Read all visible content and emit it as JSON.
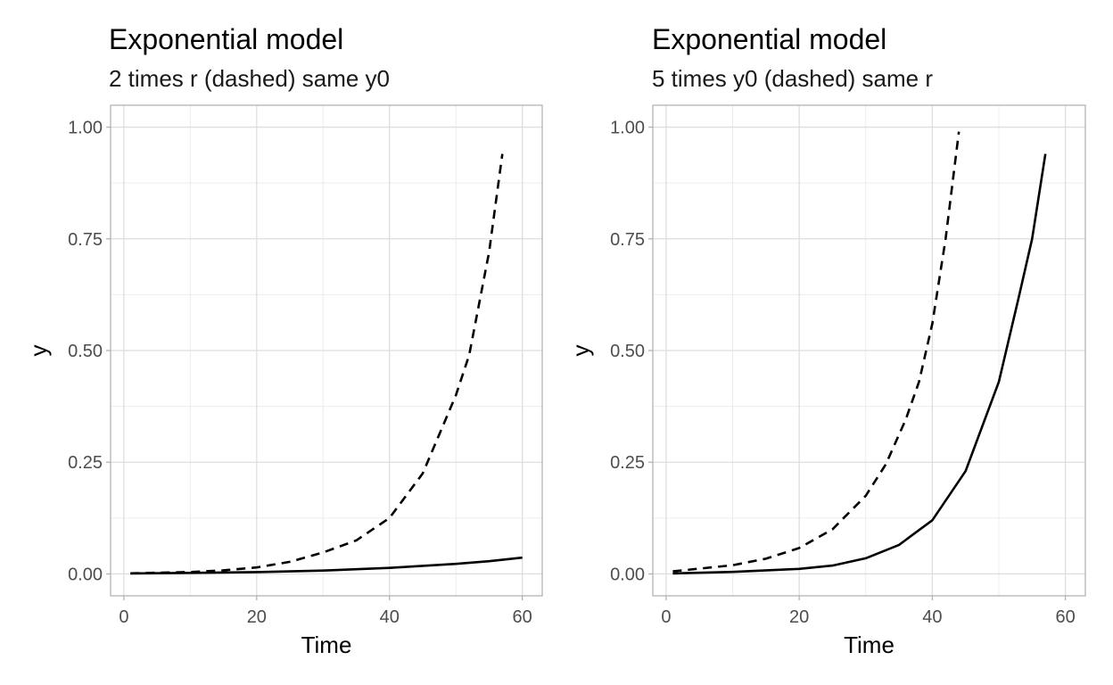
{
  "chart_data": [
    {
      "type": "line",
      "title": "Exponential model",
      "subtitle": "2 times r (dashed) same y0",
      "xlabel": "Time",
      "ylabel": "y",
      "xlim": [
        0,
        60
      ],
      "ylim": [
        0,
        1
      ],
      "x_ticks": [
        0,
        20,
        40,
        60
      ],
      "x_tick_labels": [
        "0",
        "20",
        "40",
        "60"
      ],
      "y_ticks": [
        0,
        0.25,
        0.5,
        0.75,
        1
      ],
      "y_tick_labels": [
        "0.00",
        "0.25",
        "0.50",
        "0.75",
        "1.00"
      ],
      "grid": true,
      "legend": "none",
      "series": [
        {
          "style": "solid",
          "color": "#000000",
          "x": [
            1,
            10,
            20,
            30,
            40,
            50,
            55,
            60
          ],
          "y": [
            0.0012,
            0.0023,
            0.0042,
            0.0075,
            0.0134,
            0.0225,
            0.0285,
            0.0365
          ]
        },
        {
          "style": "dashed",
          "color": "#000000",
          "x": [
            1,
            10,
            15,
            20,
            25,
            30,
            35,
            40,
            45,
            50,
            52,
            55,
            57
          ],
          "y": [
            0.0014,
            0.0043,
            0.008,
            0.0145,
            0.027,
            0.048,
            0.075,
            0.125,
            0.225,
            0.4,
            0.49,
            0.72,
            0.94
          ]
        }
      ]
    },
    {
      "type": "line",
      "title": "Exponential model",
      "subtitle": "5 times y0 (dashed) same r",
      "xlabel": "Time",
      "ylabel": "y",
      "xlim": [
        0,
        60
      ],
      "ylim": [
        0,
        1
      ],
      "x_ticks": [
        0,
        20,
        40,
        60
      ],
      "x_tick_labels": [
        "0",
        "20",
        "40",
        "60"
      ],
      "y_ticks": [
        0,
        0.25,
        0.5,
        0.75,
        1
      ],
      "y_tick_labels": [
        "0.00",
        "0.25",
        "0.50",
        "0.75",
        "1.00"
      ],
      "grid": true,
      "legend": "none",
      "series": [
        {
          "style": "solid",
          "color": "#000000",
          "x": [
            1,
            10,
            20,
            25,
            30,
            35,
            40,
            45,
            50,
            53,
            55,
            57
          ],
          "y": [
            0.0012,
            0.0045,
            0.0112,
            0.0187,
            0.035,
            0.065,
            0.12,
            0.23,
            0.43,
            0.62,
            0.75,
            0.94
          ]
        },
        {
          "style": "dashed",
          "color": "#000000",
          "x": [
            1,
            10,
            15,
            20,
            25,
            30,
            33,
            36,
            38,
            40,
            42,
            44
          ],
          "y": [
            0.0058,
            0.0195,
            0.034,
            0.058,
            0.1,
            0.175,
            0.245,
            0.345,
            0.43,
            0.56,
            0.75,
            0.99
          ]
        }
      ]
    }
  ]
}
